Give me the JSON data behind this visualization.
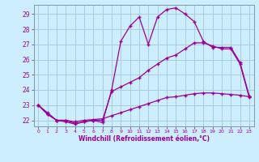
{
  "xlabel": "Windchill (Refroidissement éolien,°C)",
  "bg_color": "#cceeff",
  "grid_color": "#aaccdd",
  "line_color": "#990099",
  "xlim_min": -0.5,
  "xlim_max": 23.5,
  "ylim_min": 21.6,
  "ylim_max": 29.6,
  "yticks": [
    22,
    23,
    24,
    25,
    26,
    27,
    28,
    29
  ],
  "xticks": [
    0,
    1,
    2,
    3,
    4,
    5,
    6,
    7,
    8,
    9,
    10,
    11,
    12,
    13,
    14,
    15,
    16,
    17,
    18,
    19,
    20,
    21,
    22,
    23
  ],
  "line1_x": [
    0,
    1,
    2,
    3,
    4,
    5,
    6,
    7,
    8,
    9,
    10,
    11,
    12,
    13,
    14,
    15,
    16,
    17,
    18,
    19,
    20,
    21,
    22,
    23
  ],
  "line1_y": [
    23.0,
    22.5,
    22.0,
    21.9,
    21.75,
    21.9,
    22.0,
    21.85,
    24.0,
    27.2,
    28.2,
    28.8,
    27.0,
    28.8,
    29.3,
    29.4,
    29.0,
    28.5,
    27.2,
    26.8,
    26.8,
    26.8,
    25.8,
    23.6
  ],
  "line2_x": [
    0,
    1,
    2,
    3,
    4,
    5,
    6,
    7,
    8,
    9,
    10,
    11,
    12,
    13,
    14,
    15,
    16,
    17,
    18,
    19,
    20,
    21,
    22,
    23
  ],
  "line2_y": [
    23.0,
    22.4,
    22.0,
    22.0,
    21.8,
    21.9,
    22.0,
    22.0,
    23.9,
    24.2,
    24.5,
    24.8,
    25.3,
    25.7,
    26.1,
    26.3,
    26.7,
    27.1,
    27.1,
    26.9,
    26.7,
    26.7,
    25.7,
    23.5
  ],
  "line3_x": [
    0,
    1,
    2,
    3,
    4,
    5,
    6,
    7,
    8,
    9,
    10,
    11,
    12,
    13,
    14,
    15,
    16,
    17,
    18,
    19,
    20,
    21,
    22,
    23
  ],
  "line3_y": [
    23.0,
    22.4,
    22.0,
    22.0,
    21.9,
    22.0,
    22.05,
    22.1,
    22.3,
    22.5,
    22.7,
    22.9,
    23.1,
    23.3,
    23.5,
    23.55,
    23.65,
    23.75,
    23.8,
    23.8,
    23.75,
    23.7,
    23.65,
    23.55
  ]
}
